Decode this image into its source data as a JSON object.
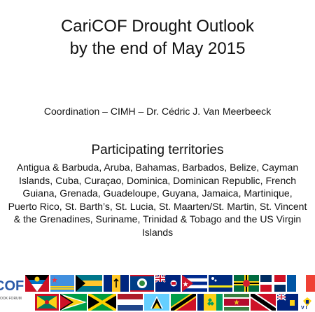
{
  "slide": {
    "title_line1": "CariCOF Drought Outlook",
    "title_line2": "by the end of May 2015",
    "coordination": "Coordination – CIMH – Dr. Cédric J. Van Meerbeeck",
    "participating_heading": "Participating territories",
    "territories_lines": [
      "Antigua & Barbuda, Aruba, Bahamas, Barbados, Belize, Cayman",
      "Islands, Cuba, Curaçao, Dominica, Dominican Republic, French",
      "Guiana, Grenada, Guadeloupe, Guyana, Jamaica, Martinique,",
      "Puerto Rico, St. Barth’s, St. Lucia, St. Maarten/St. Martin, St. Vincent",
      "& the Grenadines, Suriname, Trinidad & Tobago and the US Virgin",
      "Islands"
    ]
  },
  "logo": {
    "text": "COF",
    "subtext": "OOK FORUM"
  },
  "flags": [
    {
      "icon": "antigua-flag-icon"
    },
    {
      "icon": "aruba-flag-icon"
    },
    {
      "icon": "bahamas-flag-icon"
    },
    {
      "icon": "barbados-flag-icon"
    },
    {
      "icon": "belize-flag-icon"
    },
    {
      "icon": "cayman-flag-icon"
    },
    {
      "icon": "cuba-flag-icon"
    },
    {
      "icon": "curacao-flag-icon"
    },
    {
      "icon": "dominica-flag-icon"
    },
    {
      "icon": "dominican-republic-flag-icon"
    },
    {
      "icon": "france-flag-icon"
    },
    {
      "icon": "grenada-flag-icon"
    },
    {
      "icon": "guyana-flag-icon"
    },
    {
      "icon": "jamaica-flag-icon"
    },
    {
      "icon": "netherlands-flag-icon"
    },
    {
      "icon": "st-lucia-flag-icon"
    },
    {
      "icon": "st-kitts-flag-icon"
    },
    {
      "icon": "st-vincent-flag-icon"
    },
    {
      "icon": "suriname-flag-icon"
    },
    {
      "icon": "trinidad-flag-icon"
    },
    {
      "icon": "turks-caicos-flag-icon"
    },
    {
      "icon": "usvi-flag-icon"
    }
  ]
}
